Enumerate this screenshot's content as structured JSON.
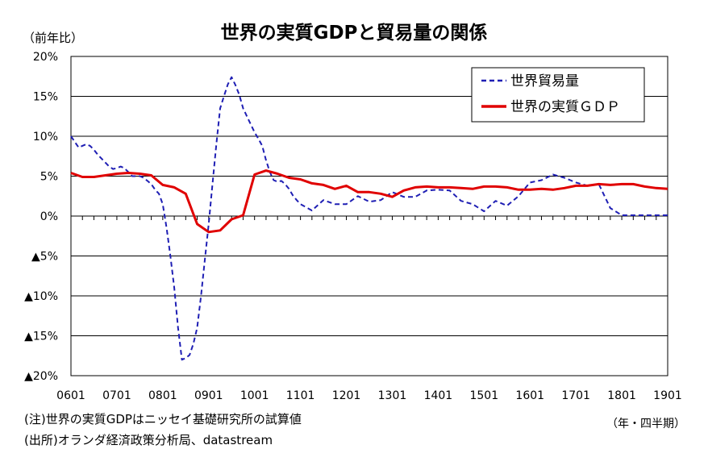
{
  "chart_data": {
    "type": "line",
    "title": "世界の実質GDPと貿易量の関係",
    "yunit": "（前年比）",
    "xunit": "（年・四半期）",
    "notes": [
      "(注)世界の実質GDPはニッセイ基礎研究所の試算値",
      "(出所)オランダ経済政策分析局、datastream"
    ],
    "ylim": [
      -20,
      20
    ],
    "y_ticks": [
      {
        "value": 20,
        "label": "20%"
      },
      {
        "value": 15,
        "label": "15%"
      },
      {
        "value": 10,
        "label": "10%"
      },
      {
        "value": 5,
        "label": "5%"
      },
      {
        "value": 0,
        "label": "0%"
      },
      {
        "value": -5,
        "label": "▲5%"
      },
      {
        "value": -10,
        "label": "▲10%"
      },
      {
        "value": -15,
        "label": "▲15%"
      },
      {
        "value": -20,
        "label": "▲20%"
      }
    ],
    "x_start": "2006-01",
    "x_end": "2019-01",
    "x_ticks": [
      "0601",
      "0701",
      "0801",
      "0901",
      "1001",
      "1101",
      "1201",
      "1301",
      "1401",
      "1501",
      "1601",
      "1701",
      "1801",
      "1901"
    ],
    "grid": true,
    "legend": "top-right",
    "series": [
      {
        "name": "世界貿易量",
        "color": "#1f1fb4",
        "style": "dashed",
        "x": [
          "2006-01",
          "2006-02",
          "2006-03",
          "2006-04",
          "2006-05",
          "2006-06",
          "2006-07",
          "2006-08",
          "2006-09",
          "2006-10",
          "2006-11",
          "2006-12",
          "2007-01",
          "2007-02",
          "2007-03",
          "2007-04",
          "2007-05",
          "2007-06",
          "2007-07",
          "2007-08",
          "2007-09",
          "2007-10",
          "2007-11",
          "2007-12",
          "2008-01",
          "2008-02",
          "2008-03",
          "2008-04",
          "2008-05",
          "2008-06",
          "2008-07",
          "2008-08",
          "2008-09",
          "2008-10",
          "2008-11",
          "2008-12",
          "2009-01",
          "2009-02",
          "2009-03",
          "2009-04",
          "2009-05",
          "2009-06",
          "2009-07",
          "2009-08",
          "2009-09",
          "2009-10",
          "2009-11",
          "2009-12",
          "2010-01",
          "2010-02",
          "2010-03",
          "2010-04",
          "2010-05",
          "2010-06",
          "2010-07",
          "2010-08",
          "2010-09",
          "2010-10",
          "2010-11",
          "2010-12",
          "2011-01",
          "2011-04",
          "2011-07",
          "2011-10",
          "2012-01",
          "2012-04",
          "2012-07",
          "2012-10",
          "2013-01",
          "2013-04",
          "2013-07",
          "2013-10",
          "2014-01",
          "2014-04",
          "2014-07",
          "2014-10",
          "2015-01",
          "2015-04",
          "2015-07",
          "2015-10",
          "2016-01",
          "2016-04",
          "2016-07",
          "2016-10",
          "2017-01",
          "2017-04",
          "2017-07",
          "2017-10",
          "2018-01",
          "2018-04",
          "2018-07",
          "2018-10",
          "2019-01"
        ],
        "values": [
          10.0,
          9.3,
          8.6,
          8.8,
          9.0,
          8.8,
          8.3,
          7.7,
          7.2,
          6.7,
          6.2,
          5.9,
          6.0,
          6.2,
          6.0,
          5.5,
          5.0,
          5.0,
          5.0,
          4.8,
          4.4,
          4.0,
          3.3,
          2.8,
          1.5,
          -1.5,
          -5.0,
          -9.0,
          -14.0,
          -18.0,
          -17.8,
          -17.4,
          -16.0,
          -14.0,
          -10.0,
          -5.5,
          -1.0,
          4.0,
          9.0,
          13.5,
          15.0,
          16.5,
          17.4,
          16.4,
          15.2,
          13.5,
          12.5,
          11.5,
          10.5,
          9.7,
          8.8,
          7.0,
          5.5,
          4.5,
          4.3,
          4.4,
          4.0,
          3.4,
          2.6,
          2.0,
          1.5,
          0.7,
          2.0,
          1.5,
          1.5,
          2.5,
          1.8,
          2.0,
          3.0,
          2.4,
          2.4,
          3.2,
          3.3,
          3.2,
          1.9,
          1.5,
          0.6,
          1.9,
          1.3,
          2.5,
          4.2,
          4.5,
          5.2,
          4.8,
          4.2,
          3.8,
          4.0,
          1.0,
          0.1,
          0.1,
          0.1,
          0.1,
          0.1
        ]
      },
      {
        "name": "世界の実質ＧＤＰ",
        "color": "#e00000",
        "style": "solid",
        "x": [
          "2006-01",
          "2006-04",
          "2006-07",
          "2006-10",
          "2007-01",
          "2007-04",
          "2007-07",
          "2007-10",
          "2008-01",
          "2008-04",
          "2008-07",
          "2008-10",
          "2009-01",
          "2009-04",
          "2009-07",
          "2009-10",
          "2010-01",
          "2010-04",
          "2010-07",
          "2010-10",
          "2011-01",
          "2011-04",
          "2011-07",
          "2011-10",
          "2012-01",
          "2012-04",
          "2012-07",
          "2012-10",
          "2013-01",
          "2013-04",
          "2013-07",
          "2013-10",
          "2014-01",
          "2014-04",
          "2014-07",
          "2014-10",
          "2015-01",
          "2015-04",
          "2015-07",
          "2015-10",
          "2016-01",
          "2016-04",
          "2016-07",
          "2016-10",
          "2017-01",
          "2017-04",
          "2017-07",
          "2017-10",
          "2018-01",
          "2018-04",
          "2018-07",
          "2018-10",
          "2019-01"
        ],
        "values": [
          5.4,
          4.9,
          4.9,
          5.1,
          5.3,
          5.4,
          5.3,
          5.1,
          3.9,
          3.6,
          2.8,
          -1.0,
          -2.0,
          -1.8,
          -0.4,
          0.1,
          5.2,
          5.7,
          5.3,
          4.8,
          4.6,
          4.1,
          3.9,
          3.4,
          3.8,
          3.0,
          3.0,
          2.8,
          2.4,
          3.2,
          3.6,
          3.7,
          3.6,
          3.6,
          3.5,
          3.4,
          3.7,
          3.7,
          3.6,
          3.3,
          3.3,
          3.4,
          3.3,
          3.5,
          3.8,
          3.8,
          4.0,
          3.9,
          4.0,
          4.0,
          3.7,
          3.5,
          3.4
        ]
      }
    ]
  }
}
